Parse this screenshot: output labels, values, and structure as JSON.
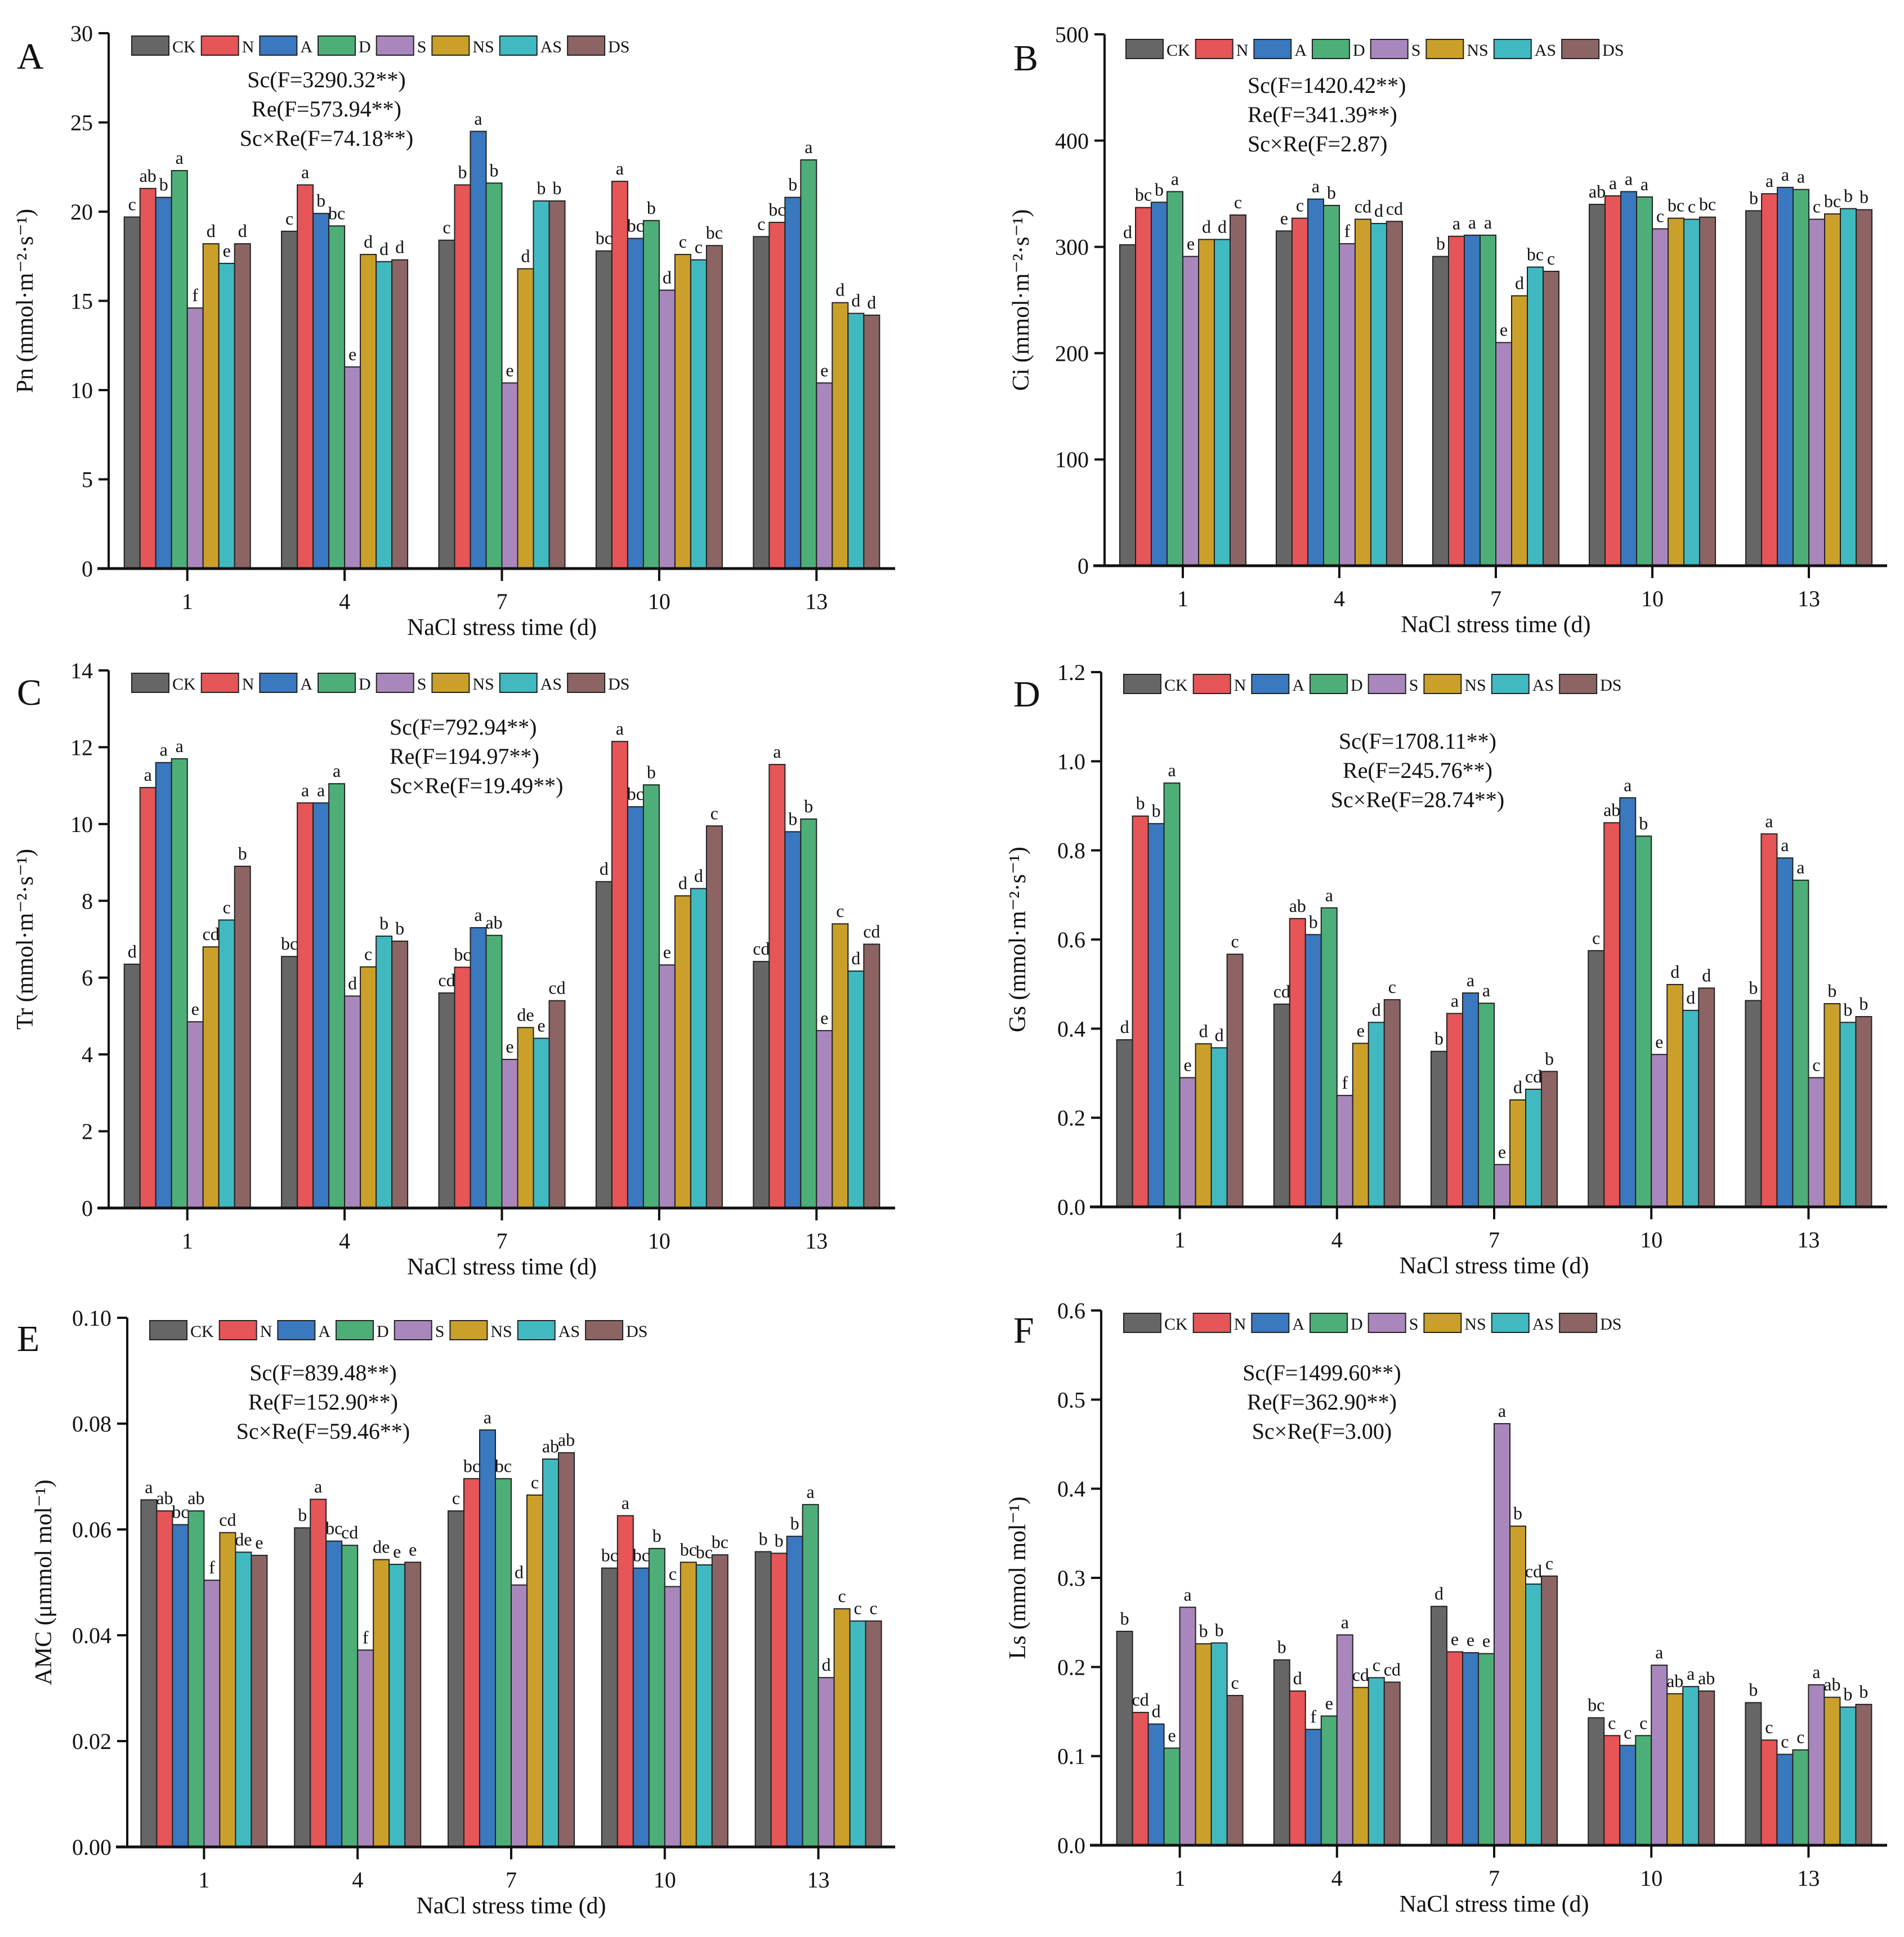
{
  "series": [
    "CK",
    "N",
    "A",
    "D",
    "S",
    "NS",
    "AS",
    "DS"
  ],
  "colors": {
    "CK": "#666666",
    "N": "#e65557",
    "A": "#3a78c0",
    "D": "#4daf77",
    "S": "#a987bd",
    "NS": "#caa02a",
    "AS": "#40bac0",
    "DS": "#8c6464"
  },
  "chart_data": [
    {
      "panel": "A",
      "type": "bar",
      "xlabel": "NaCl stress time (d)",
      "ylabel": "Pn (mmol·m⁻²·s⁻¹)",
      "categories": [
        "1",
        "4",
        "7",
        "10",
        "13"
      ],
      "ylim": [
        0,
        30
      ],
      "yticks": [
        "0",
        "5",
        "10",
        "15",
        "20",
        "25",
        "30"
      ],
      "stats": [
        "Sc(F=3290.32**)",
        "Re(F=573.94**)",
        "Sc×Re(F=74.18**)"
      ],
      "values": [
        [
          19.7,
          21.3,
          20.8,
          22.3,
          14.6,
          18.2,
          17.1,
          18.2
        ],
        [
          18.9,
          21.5,
          19.9,
          19.2,
          11.3,
          17.6,
          17.2,
          17.3
        ],
        [
          18.4,
          21.5,
          24.5,
          21.6,
          10.4,
          16.8,
          20.6,
          20.6
        ],
        [
          17.8,
          21.7,
          18.5,
          19.5,
          15.6,
          17.6,
          17.3,
          18.1
        ],
        [
          18.6,
          19.4,
          20.8,
          22.9,
          10.4,
          14.9,
          14.3,
          14.2
        ]
      ],
      "letters": [
        [
          "c",
          "ab",
          "b",
          "a",
          "f",
          "d",
          "e",
          "d"
        ],
        [
          "c",
          "a",
          "b",
          "bc",
          "e",
          "d",
          "d",
          "d"
        ],
        [
          "c",
          "b",
          "a",
          "b",
          "e",
          "d",
          "b",
          "b"
        ],
        [
          "bc",
          "a",
          "bc",
          "b",
          "d",
          "c",
          "c",
          "bc"
        ],
        [
          "c",
          "bc",
          "b",
          "a",
          "e",
          "d",
          "d",
          "d"
        ]
      ]
    },
    {
      "panel": "B",
      "type": "bar",
      "xlabel": "NaCl stress time (d)",
      "ylabel": "Ci (mmol·m⁻²·s⁻¹)",
      "categories": [
        "1",
        "4",
        "7",
        "10",
        "13"
      ],
      "ylim": [
        0,
        500
      ],
      "yticks": [
        "0",
        "100",
        "200",
        "300",
        "400",
        "500"
      ],
      "stats": [
        "Sc(F=1420.42**)",
        "Re(F=341.39**)",
        "Sc×Re(F=2.87)"
      ],
      "values": [
        [
          302,
          337,
          342,
          352,
          291,
          307,
          307,
          330
        ],
        [
          315,
          327,
          345,
          339,
          303,
          326,
          322,
          324
        ],
        [
          291,
          310,
          311,
          311,
          210,
          254,
          281,
          277
        ],
        [
          340,
          348,
          352,
          347,
          317,
          327,
          326,
          328
        ],
        [
          334,
          350,
          356,
          354,
          326,
          331,
          336,
          335
        ]
      ],
      "letters": [
        [
          "d",
          "bc",
          "b",
          "a",
          "e",
          "d",
          "d",
          "c"
        ],
        [
          "e",
          "c",
          "a",
          "b",
          "f",
          "cd",
          "d",
          "cd"
        ],
        [
          "b",
          "a",
          "a",
          "a",
          "e",
          "d",
          "bc",
          "c"
        ],
        [
          "ab",
          "a",
          "a",
          "a",
          "c",
          "bc",
          "c",
          "bc"
        ],
        [
          "b",
          "a",
          "a",
          "a",
          "c",
          "bc",
          "b",
          "b"
        ]
      ]
    },
    {
      "panel": "C",
      "type": "bar",
      "xlabel": "NaCl stress time (d)",
      "ylabel": "Tr (mmol·m⁻²·s⁻¹)",
      "categories": [
        "1",
        "4",
        "7",
        "10",
        "13"
      ],
      "ylim": [
        0,
        14
      ],
      "yticks": [
        "0",
        "2",
        "4",
        "6",
        "8",
        "10",
        "12",
        "14"
      ],
      "stats": [
        "Sc(F=792.94**)",
        "Re(F=194.97**)",
        "Sc×Re(F=19.49**)"
      ],
      "values": [
        [
          6.35,
          10.95,
          11.6,
          11.7,
          4.85,
          6.8,
          7.5,
          8.9
        ],
        [
          6.55,
          10.55,
          10.55,
          11.05,
          5.52,
          6.28,
          7.08,
          6.95
        ],
        [
          5.6,
          6.27,
          7.3,
          7.1,
          3.87,
          4.7,
          4.42,
          5.4
        ],
        [
          8.5,
          12.15,
          10.45,
          11.02,
          6.33,
          8.13,
          8.32,
          9.95
        ],
        [
          6.42,
          11.55,
          9.8,
          10.13,
          4.62,
          7.4,
          6.17,
          6.87
        ]
      ],
      "letters": [
        [
          "d",
          "a",
          "a",
          "a",
          "e",
          "cd",
          "c",
          "b"
        ],
        [
          "bc",
          "a",
          "a",
          "a",
          "d",
          "c",
          "b",
          "b"
        ],
        [
          "cd",
          "bc",
          "a",
          "ab",
          "e",
          "de",
          "e",
          "cd"
        ],
        [
          "d",
          "a",
          "bc",
          "b",
          "e",
          "d",
          "d",
          "c"
        ],
        [
          "cd",
          "a",
          "b",
          "b",
          "e",
          "c",
          "d",
          "cd"
        ]
      ]
    },
    {
      "panel": "D",
      "type": "bar",
      "xlabel": "NaCl stress time (d)",
      "ylabel": "Gs (mmol·m⁻²·s⁻¹)",
      "categories": [
        "1",
        "4",
        "7",
        "10",
        "13"
      ],
      "ylim": [
        0,
        1.2
      ],
      "yticks": [
        "0.0",
        "0.2",
        "0.4",
        "0.6",
        "0.8",
        "1.0",
        "1.2"
      ],
      "stats": [
        "Sc(F=1708.11**)",
        "Re(F=245.76**)",
        "Sc×Re(F=28.74**)"
      ],
      "values": [
        [
          0.375,
          0.877,
          0.86,
          0.951,
          0.29,
          0.366,
          0.357,
          0.567
        ],
        [
          0.455,
          0.647,
          0.611,
          0.671,
          0.25,
          0.367,
          0.414,
          0.465
        ],
        [
          0.349,
          0.434,
          0.48,
          0.457,
          0.095,
          0.24,
          0.264,
          0.304
        ],
        [
          0.575,
          0.862,
          0.918,
          0.832,
          0.342,
          0.499,
          0.441,
          0.491
        ],
        [
          0.463,
          0.837,
          0.783,
          0.733,
          0.29,
          0.456,
          0.414,
          0.427
        ]
      ],
      "letters": [
        [
          "d",
          "b",
          "b",
          "a",
          "e",
          "d",
          "d",
          "c"
        ],
        [
          "cd",
          "ab",
          "b",
          "a",
          "f",
          "e",
          "d",
          "c"
        ],
        [
          "b",
          "a",
          "a",
          "a",
          "e",
          "d",
          "cd",
          "b"
        ],
        [
          "c",
          "ab",
          "a",
          "b",
          "e",
          "d",
          "d",
          "d"
        ],
        [
          "b",
          "a",
          "a",
          "a",
          "c",
          "b",
          "b",
          "b"
        ]
      ]
    },
    {
      "panel": "E",
      "type": "bar",
      "xlabel": "NaCl stress time (d)",
      "ylabel": "AMC (μmmol mol⁻¹)",
      "categories": [
        "1",
        "4",
        "7",
        "10",
        "13"
      ],
      "ylim": [
        0,
        0.1
      ],
      "yticks": [
        "0.00",
        "0.02",
        "0.04",
        "0.06",
        "0.08",
        "0.10"
      ],
      "stats": [
        "Sc(F=839.48**)",
        "Re(F=152.90**)",
        "Sc×Re(F=59.46**)"
      ],
      "values": [
        [
          0.0656,
          0.0635,
          0.0609,
          0.0635,
          0.0504,
          0.0594,
          0.0557,
          0.0551
        ],
        [
          0.0603,
          0.0657,
          0.0578,
          0.057,
          0.0372,
          0.0543,
          0.0534,
          0.0538
        ],
        [
          0.0635,
          0.0696,
          0.0788,
          0.0696,
          0.0495,
          0.0665,
          0.0733,
          0.0745
        ],
        [
          0.0527,
          0.0626,
          0.0527,
          0.0564,
          0.0492,
          0.0538,
          0.0533,
          0.0552
        ],
        [
          0.0558,
          0.0555,
          0.0587,
          0.0647,
          0.032,
          0.045,
          0.0427,
          0.0427
        ]
      ],
      "letters": [
        [
          "a",
          "ab",
          "bc",
          "ab",
          "f",
          "cd",
          "de",
          "e"
        ],
        [
          "b",
          "a",
          "bc",
          "cd",
          "f",
          "de",
          "e",
          "e"
        ],
        [
          "c",
          "bc",
          "a",
          "bc",
          "d",
          "c",
          "ab",
          "ab"
        ],
        [
          "bc",
          "a",
          "bc",
          "b",
          "c",
          "bc",
          "bc",
          "bc"
        ],
        [
          "b",
          "b",
          "b",
          "a",
          "d",
          "c",
          "c",
          "c"
        ]
      ]
    },
    {
      "panel": "F",
      "type": "bar",
      "xlabel": "NaCl stress time (d)",
      "ylabel": "Ls (mmol mol⁻¹)",
      "categories": [
        "1",
        "4",
        "7",
        "10",
        "13"
      ],
      "ylim": [
        0,
        0.6
      ],
      "yticks": [
        "0.0",
        "0.1",
        "0.2",
        "0.3",
        "0.4",
        "0.5",
        "0.6"
      ],
      "stats": [
        "Sc(F=1499.60**)",
        "Re(F=362.90**)",
        "Sc×Re(F=3.00)"
      ],
      "values": [
        [
          0.24,
          0.149,
          0.136,
          0.109,
          0.267,
          0.226,
          0.227,
          0.168
        ],
        [
          0.208,
          0.173,
          0.13,
          0.145,
          0.236,
          0.177,
          0.188,
          0.183
        ],
        [
          0.268,
          0.217,
          0.216,
          0.215,
          0.473,
          0.358,
          0.293,
          0.302
        ],
        [
          0.143,
          0.123,
          0.112,
          0.123,
          0.202,
          0.17,
          0.178,
          0.173
        ],
        [
          0.16,
          0.118,
          0.102,
          0.107,
          0.18,
          0.166,
          0.155,
          0.158
        ]
      ],
      "letters": [
        [
          "b",
          "cd",
          "d",
          "e",
          "a",
          "b",
          "b",
          "c"
        ],
        [
          "b",
          "d",
          "f",
          "e",
          "a",
          "cd",
          "c",
          "cd"
        ],
        [
          "d",
          "e",
          "e",
          "e",
          "a",
          "b",
          "cd",
          "c"
        ],
        [
          "bc",
          "c",
          "c",
          "c",
          "a",
          "ab",
          "a",
          "ab"
        ],
        [
          "b",
          "c",
          "c",
          "c",
          "a",
          "ab",
          "b",
          "b"
        ]
      ]
    }
  ]
}
